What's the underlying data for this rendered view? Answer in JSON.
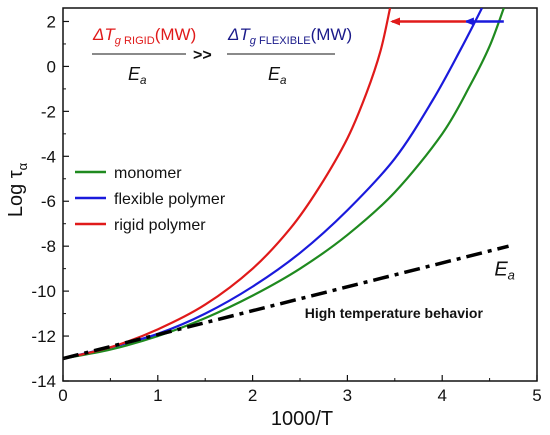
{
  "chart_data": {
    "type": "line",
    "title": "",
    "xlabel": "1000/T",
    "ylabel": "Log τα",
    "xlim": [
      0,
      5
    ],
    "ylim": [
      -14,
      2.6
    ],
    "x_ticks": [
      0,
      1,
      2,
      3,
      4,
      5
    ],
    "y_ticks": [
      -14,
      -12,
      -10,
      -8,
      -6,
      -4,
      -2,
      0,
      2
    ],
    "grid": false,
    "legend_position": "middle-left",
    "series": [
      {
        "name": "monomer",
        "color": "#1f8a1f",
        "points": [
          [
            0.0,
            -13.0
          ],
          [
            0.5,
            -12.6
          ],
          [
            1.0,
            -12.0
          ],
          [
            1.5,
            -11.2
          ],
          [
            2.0,
            -10.2
          ],
          [
            2.5,
            -9.0
          ],
          [
            3.0,
            -7.5
          ],
          [
            3.5,
            -5.6
          ],
          [
            4.0,
            -3.0
          ],
          [
            4.3,
            -0.8
          ],
          [
            4.5,
            0.9
          ],
          [
            4.65,
            2.6
          ]
        ]
      },
      {
        "name": "flexible polymer",
        "color": "#1a1adc",
        "points": [
          [
            0.0,
            -13.0
          ],
          [
            0.5,
            -12.5
          ],
          [
            1.0,
            -11.9
          ],
          [
            1.5,
            -11.0
          ],
          [
            2.0,
            -9.8
          ],
          [
            2.5,
            -8.3
          ],
          [
            3.0,
            -6.4
          ],
          [
            3.5,
            -4.1
          ],
          [
            3.9,
            -1.5
          ],
          [
            4.2,
            0.8
          ],
          [
            4.42,
            2.6
          ]
        ]
      },
      {
        "name": "rigid polymer",
        "color": "#e01a1a",
        "points": [
          [
            0.0,
            -13.0
          ],
          [
            0.5,
            -12.5
          ],
          [
            1.0,
            -11.7
          ],
          [
            1.5,
            -10.6
          ],
          [
            2.0,
            -9.0
          ],
          [
            2.4,
            -7.2
          ],
          [
            2.7,
            -5.4
          ],
          [
            3.0,
            -3.2
          ],
          [
            3.2,
            -1.2
          ],
          [
            3.35,
            0.7
          ],
          [
            3.45,
            2.6
          ]
        ]
      },
      {
        "name": "",
        "style": "dash-dot",
        "color": "#000000",
        "points": [
          [
            0.0,
            -13.0
          ],
          [
            4.7,
            -8.0
          ]
        ]
      }
    ],
    "annotations": {
      "rigid_expr": "ΔTg RIGID(MW)",
      "flexible_expr": "ΔTg FLEXIBLE(MW)",
      "operator": ">>",
      "denominator": "Ea",
      "ea_label": "Ea",
      "high_temp": "High temperature behavior"
    },
    "arrows": [
      {
        "from": [
          4.65,
          2.0
        ],
        "to": [
          4.25,
          2.0
        ],
        "color": "#1a1adc"
      },
      {
        "from": [
          4.25,
          2.0
        ],
        "to": [
          3.45,
          2.0
        ],
        "color": "#e01a1a"
      }
    ]
  }
}
